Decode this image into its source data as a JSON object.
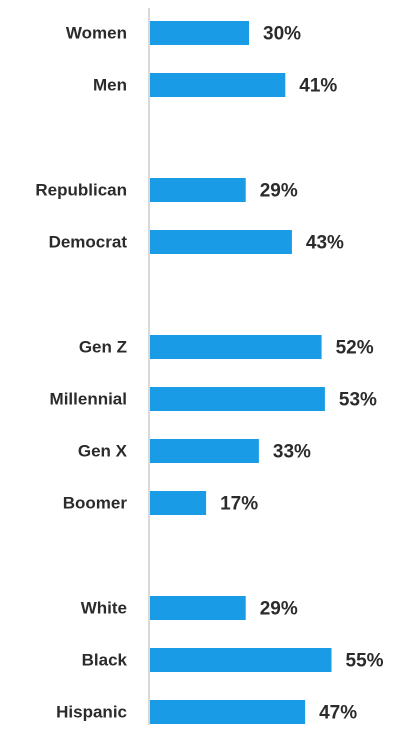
{
  "chart_data": {
    "type": "bar",
    "orientation": "horizontal",
    "title": "",
    "xlabel": "",
    "ylabel": "",
    "xlim": [
      0,
      60
    ],
    "grid": false,
    "legend": "none",
    "bar_color": "#1a9be6",
    "axis_color": "#cccccc",
    "text_color": "#2b2b2b",
    "value_suffix": "%",
    "groups": [
      {
        "categories": [
          "Women",
          "Men"
        ],
        "values": [
          30,
          41
        ]
      },
      {
        "categories": [
          "Republican",
          "Democrat"
        ],
        "values": [
          29,
          43
        ]
      },
      {
        "categories": [
          "Gen Z",
          "Millennial",
          "Gen X",
          "Boomer"
        ],
        "values": [
          52,
          53,
          33,
          17
        ]
      },
      {
        "categories": [
          "White",
          "Black",
          "Hispanic"
        ],
        "values": [
          29,
          55,
          47
        ]
      }
    ]
  }
}
